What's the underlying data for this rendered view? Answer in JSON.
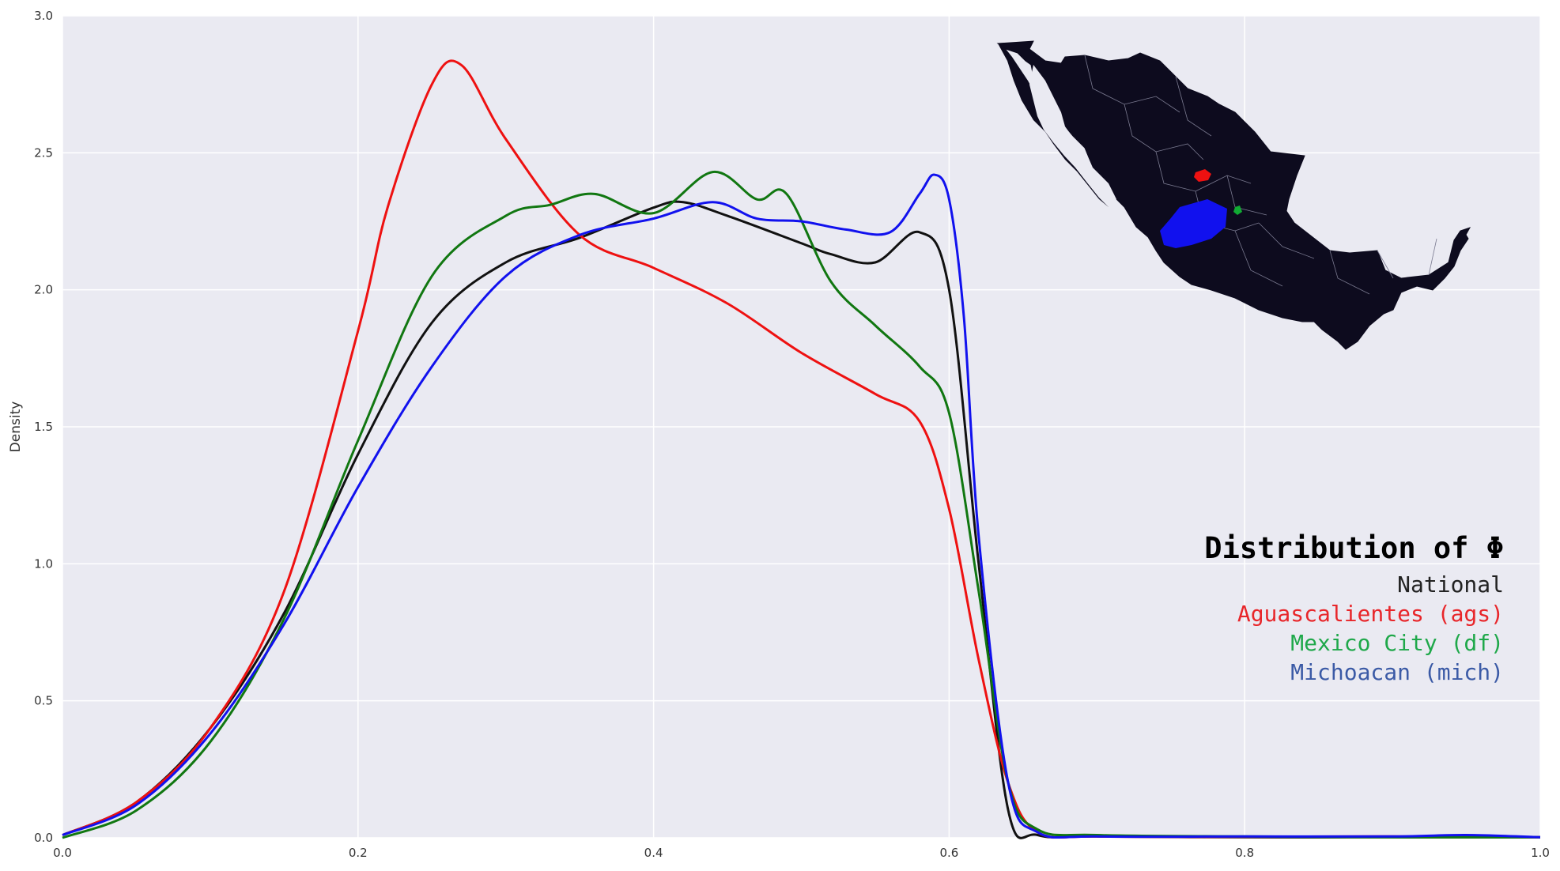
{
  "chart_data": {
    "type": "line",
    "ylabel": "Density",
    "xlim": [
      0.0,
      1.0
    ],
    "ylim": [
      0.0,
      3.0
    ],
    "xticks": [
      "0.0",
      "0.2",
      "0.4",
      "0.6",
      "0.8",
      "1.0"
    ],
    "yticks": [
      "0.0",
      "0.5",
      "1.0",
      "1.5",
      "2.0",
      "2.5",
      "3.0"
    ],
    "grid": true,
    "background": "#eaeaf2",
    "legend": {
      "title": "Distribution of Φ",
      "placement": "right",
      "entries": [
        {
          "label": "National",
          "color": "#222222"
        },
        {
          "label": "Aguascalientes (ags)",
          "color": "#e8262a"
        },
        {
          "label": "Mexico City (df)",
          "color": "#1fa84a"
        },
        {
          "label": "Michoacan (mich)",
          "color": "#3b5aa6"
        }
      ]
    },
    "series": [
      {
        "name": "National",
        "color": "#111111",
        "x": [
          0.0,
          0.05,
          0.1,
          0.15,
          0.2,
          0.25,
          0.3,
          0.35,
          0.4,
          0.42,
          0.45,
          0.5,
          0.52,
          0.55,
          0.58,
          0.6,
          0.62,
          0.64,
          0.66,
          0.7,
          0.8,
          0.9,
          1.0
        ],
        "y": [
          0.01,
          0.13,
          0.4,
          0.82,
          1.4,
          1.88,
          2.1,
          2.19,
          2.3,
          2.32,
          2.27,
          2.17,
          2.13,
          2.1,
          2.21,
          2.0,
          1.0,
          0.1,
          0.01,
          0.005,
          0.002,
          0.002,
          0.002
        ]
      },
      {
        "name": "Aguascalientes (ags)",
        "color": "#ee1111",
        "x": [
          0.0,
          0.05,
          0.1,
          0.15,
          0.2,
          0.22,
          0.25,
          0.27,
          0.3,
          0.35,
          0.4,
          0.45,
          0.5,
          0.55,
          0.58,
          0.6,
          0.62,
          0.64,
          0.66,
          0.7,
          0.8,
          0.9,
          1.0
        ],
        "y": [
          0.01,
          0.13,
          0.4,
          0.9,
          1.85,
          2.3,
          2.75,
          2.82,
          2.55,
          2.2,
          2.08,
          1.95,
          1.77,
          1.62,
          1.52,
          1.2,
          0.65,
          0.2,
          0.02,
          0.005,
          0.004,
          0.005,
          0.002
        ]
      },
      {
        "name": "Mexico City (df)",
        "color": "#117711",
        "x": [
          0.0,
          0.05,
          0.1,
          0.15,
          0.2,
          0.25,
          0.3,
          0.33,
          0.36,
          0.4,
          0.44,
          0.47,
          0.49,
          0.52,
          0.55,
          0.58,
          0.6,
          0.62,
          0.64,
          0.66,
          0.7,
          0.8,
          0.9,
          1.0
        ],
        "y": [
          0.0,
          0.1,
          0.35,
          0.8,
          1.45,
          2.05,
          2.27,
          2.31,
          2.35,
          2.28,
          2.43,
          2.33,
          2.35,
          2.03,
          1.87,
          1.72,
          1.55,
          0.9,
          0.2,
          0.03,
          0.01,
          0.005,
          0.002,
          0.002
        ]
      },
      {
        "name": "Michoacan (mich)",
        "color": "#1111ee",
        "x": [
          0.0,
          0.05,
          0.1,
          0.15,
          0.2,
          0.25,
          0.3,
          0.35,
          0.4,
          0.44,
          0.47,
          0.5,
          0.53,
          0.56,
          0.58,
          0.59,
          0.6,
          0.61,
          0.62,
          0.64,
          0.66,
          0.7,
          0.8,
          0.9,
          0.95,
          1.0
        ],
        "y": [
          0.01,
          0.12,
          0.38,
          0.78,
          1.28,
          1.72,
          2.05,
          2.2,
          2.26,
          2.32,
          2.26,
          2.25,
          2.22,
          2.21,
          2.35,
          2.42,
          2.33,
          1.9,
          1.1,
          0.2,
          0.02,
          0.005,
          0.005,
          0.005,
          0.01,
          0.002
        ]
      }
    ],
    "inset_map": {
      "highlight_colors": {
        "Aguascalientes (ags)": "#ee1111",
        "Mexico City (df)": "#11aa33",
        "Michoacan (mich)": "#1111ee"
      },
      "base_color": "#0d0b1e"
    }
  }
}
